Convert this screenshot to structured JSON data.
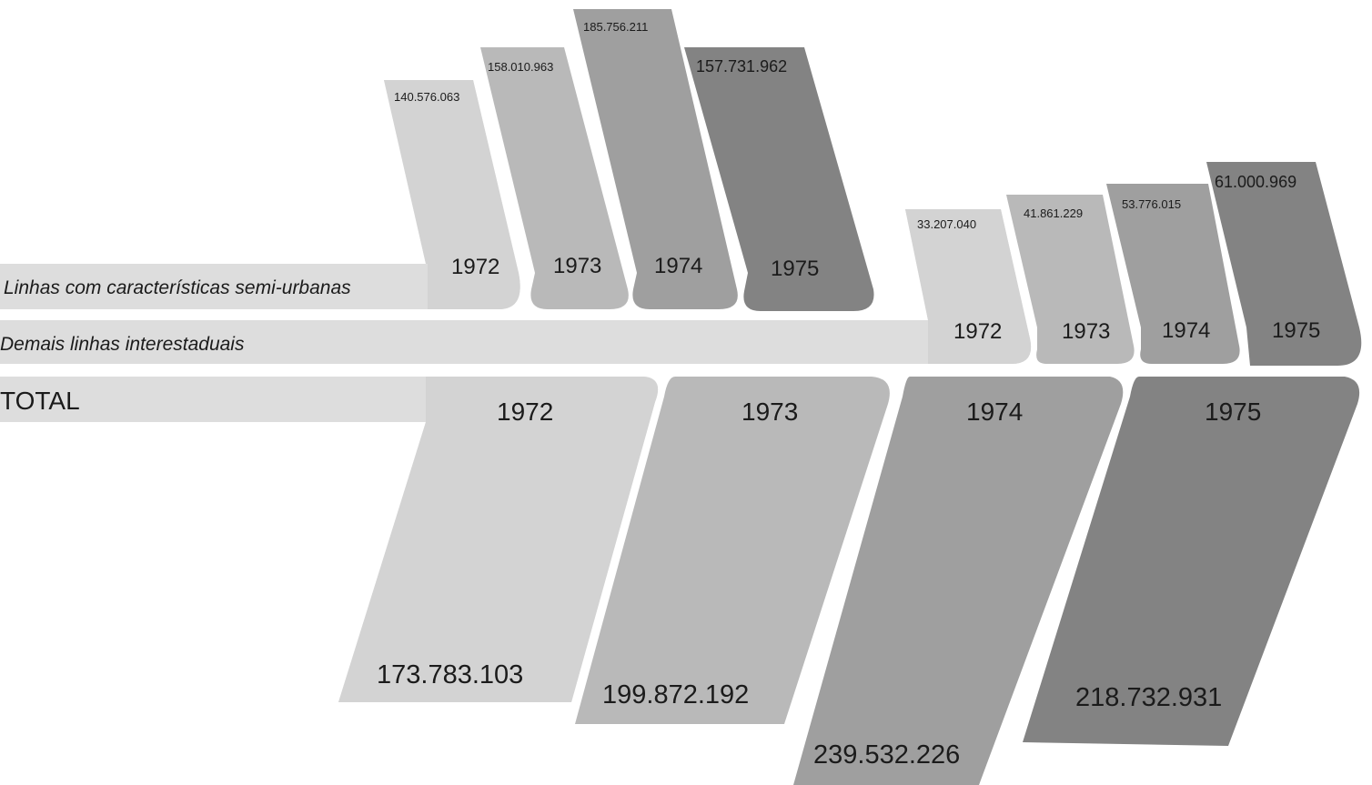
{
  "chart_data": [
    {
      "type": "bar",
      "title": "Linhas com características semi-urbanas",
      "categories": [
        "1972",
        "1973",
        "1974",
        "1975"
      ],
      "values": [
        140576063,
        158010963,
        185756211,
        157731962
      ],
      "value_labels": [
        "140.576.063",
        "158.010.963",
        "185.756.211",
        "157.731.962"
      ]
    },
    {
      "type": "bar",
      "title": "Demais linhas interestaduais",
      "categories": [
        "1972",
        "1973",
        "1974",
        "1975"
      ],
      "values": [
        33207040,
        41861229,
        53776015,
        61000969
      ],
      "value_labels": [
        "33.207.040",
        "41.861.229",
        "53.776.015",
        "61.000.969"
      ]
    },
    {
      "type": "bar",
      "title": "TOTAL",
      "categories": [
        "1972",
        "1973",
        "1974",
        "1975"
      ],
      "values": [
        173783103,
        199872192,
        239532226,
        218732931
      ],
      "value_labels": [
        "173.783.103",
        "199.872.192",
        "239.532.226",
        "218.732.931"
      ]
    }
  ],
  "colors": {
    "y1972": "#d3d3d3",
    "y1973": "#b9b9b9",
    "y1974": "#9f9f9f",
    "y1975": "#838383",
    "band": "#dddddd"
  }
}
